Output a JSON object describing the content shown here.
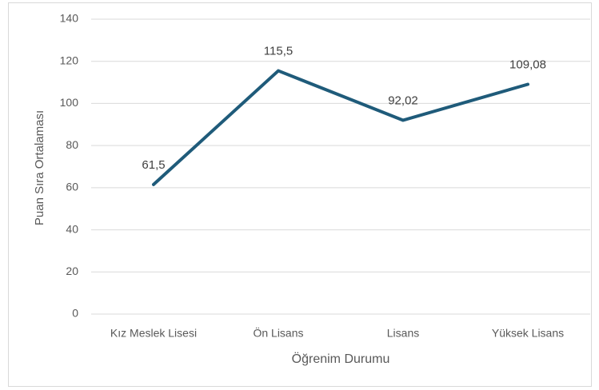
{
  "chart_data": {
    "type": "line",
    "x_label": "Öğrenim Durumu",
    "y_label": "Puan Sıra Ortalaması",
    "categories": [
      "Kız Meslek Lisesi",
      "Ön Lisans",
      "Lisans",
      "Yüksek Lisans"
    ],
    "values": [
      61.5,
      115.5,
      92.02,
      109.08
    ],
    "value_labels": [
      "61,5",
      "115,5",
      "92,02",
      "109,08"
    ],
    "color": "#1f5b7a",
    "ylim": [
      0,
      140
    ],
    "yticks": [
      0,
      20,
      40,
      60,
      80,
      100,
      120,
      140
    ],
    "grid": true
  }
}
